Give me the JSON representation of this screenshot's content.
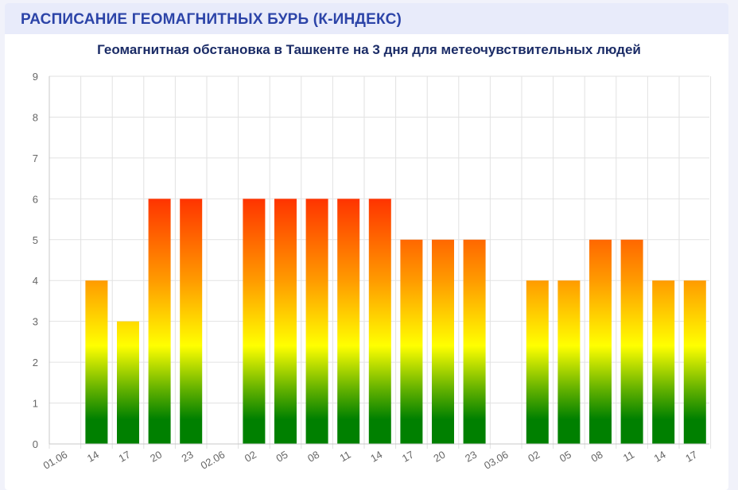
{
  "header": {
    "title": "РАСПИСАНИЕ ГЕОМАГНИТНЫХ БУРЬ (К-ИНДЕКС)"
  },
  "colors": {
    "background": "#f1f2fa",
    "header_bg": "#e8ebfa",
    "header_text": "#2c44a8",
    "title_text": "#1a2b66",
    "gradient_top": "#ff3300",
    "gradient_orange": "#ff9900",
    "gradient_yellow": "#ffff00",
    "gradient_green": "#008000"
  },
  "chart_data": {
    "type": "bar",
    "title": "Геомагнитная обстановка в Ташкенте на 3 дня для метеочувствительных людей",
    "xlabel": "",
    "ylabel": "",
    "ylim": [
      0,
      9
    ],
    "yticks": [
      0,
      1,
      2,
      3,
      4,
      5,
      6,
      7,
      8,
      9
    ],
    "grid": true,
    "categories": [
      "01.06",
      "14",
      "17",
      "20",
      "23",
      "02.06",
      "02",
      "05",
      "08",
      "11",
      "14",
      "17",
      "20",
      "23",
      "03.06",
      "02",
      "05",
      "08",
      "11",
      "14",
      "17"
    ],
    "values": [
      null,
      4,
      3,
      6,
      6,
      null,
      6,
      6,
      6,
      6,
      6,
      5,
      5,
      5,
      null,
      4,
      4,
      5,
      5,
      4,
      4
    ]
  }
}
